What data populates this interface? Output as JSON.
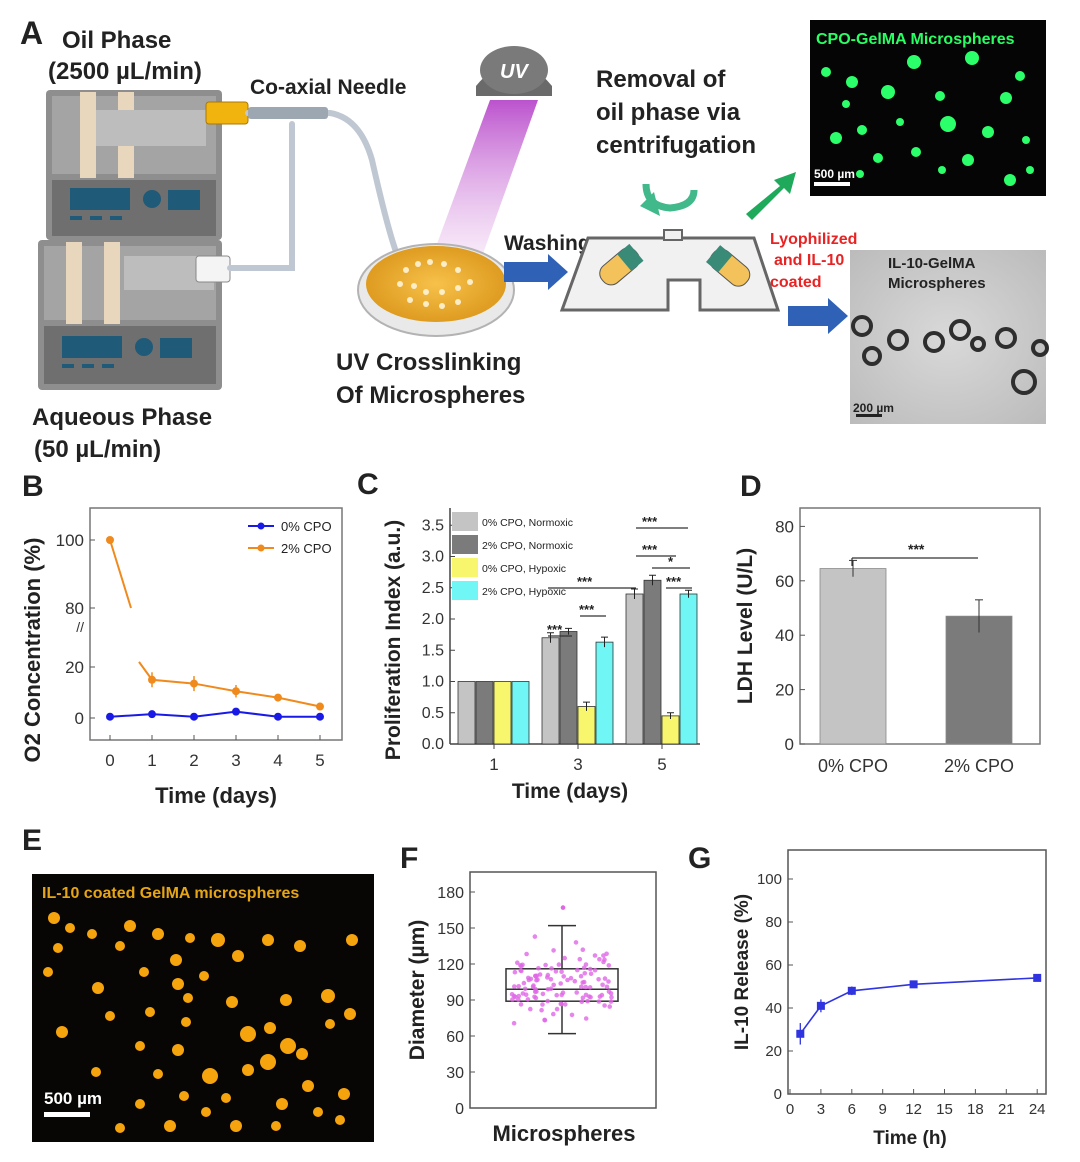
{
  "colors": {
    "orange": "#f08a1d",
    "blue": "#1a1ae6",
    "green_fluor": "#29ff62",
    "gold_fluor": "#f5a40e",
    "arrow_blue": "#2f62b6",
    "arrow_green": "#1fa95a",
    "red_text": "#e82323",
    "bar_lightgray": "#c4c4c4",
    "bar_darkgray": "#7b7b7b",
    "bar_yellow": "#f7f66c",
    "bar_cyan": "#6ff6f5",
    "box_pink": "#e066e6",
    "line_blue": "#2f34e0"
  },
  "panel_a": {
    "letter": "A",
    "oil_phase_title": "Oil Phase",
    "oil_phase_rate": "(2500 µL/min)",
    "needle_label": "Co-axial Needle",
    "uv_label": "UV",
    "aqueous_title": "Aqueous Phase",
    "aqueous_rate": "(50 µL/min)",
    "crosslink_line1": "UV Crosslinking",
    "crosslink_line2": "Of Microspheres",
    "removal_line1": "Removal of",
    "removal_line2": "oil phase via",
    "removal_line3": "centrifugation",
    "washing": "Washing",
    "lyo_line1": "Lyophilized",
    "lyo_line2": "and IL-10",
    "lyo_line3": "coated",
    "cpo_image_title": "CPO-GelMA Microspheres",
    "cpo_scale": "500 µm",
    "il10_image_line1": "IL-10-GelMA",
    "il10_image_line2": "Microspheres",
    "il10_scale": "200 µm"
  },
  "panel_b": {
    "letter": "B",
    "chart_data": {
      "type": "line",
      "xlabel": "Time (days)",
      "ylabel": "O2 Concentration (%)",
      "x": [
        0,
        1,
        2,
        3,
        4,
        5
      ],
      "xticks": [
        "0",
        "1",
        "2",
        "3",
        "4",
        "5"
      ],
      "yticks": [
        "0",
        "20",
        "80",
        "100"
      ],
      "axis_break": "20-80",
      "series": [
        {
          "name": "0% CPO",
          "color": "#1a1ae6",
          "values": [
            0.5,
            1.5,
            0.5,
            2.5,
            0.5,
            0.5
          ],
          "errors": [
            1,
            1,
            1,
            1,
            1,
            1
          ]
        },
        {
          "name": "2% CPO",
          "color": "#f08a1d",
          "values": [
            100,
            15,
            13.5,
            10.5,
            8,
            4.5
          ],
          "errors": [
            1,
            3,
            3,
            2.5,
            1.5,
            1.5
          ]
        }
      ],
      "legend_position": "top-right"
    }
  },
  "panel_c": {
    "letter": "C",
    "chart_data": {
      "type": "bar",
      "xlabel": "Time (days)",
      "ylabel": "Proliferation Index (a.u.)",
      "categories": [
        "1",
        "3",
        "5"
      ],
      "ylim": [
        0,
        3.7
      ],
      "yticks": [
        "0.0",
        "0.5",
        "1.0",
        "1.5",
        "2.0",
        "2.5",
        "3.0",
        "3.5"
      ],
      "series": [
        {
          "name": "0% CPO, Normoxic",
          "color": "#c4c4c4",
          "values": [
            1.0,
            1.7,
            2.4
          ],
          "errors": [
            0,
            0.08,
            0.08
          ]
        },
        {
          "name": "2% CPO, Normoxic",
          "color": "#7b7b7b",
          "values": [
            1.0,
            1.8,
            2.62
          ],
          "errors": [
            0,
            0.05,
            0.08
          ]
        },
        {
          "name": "0% CPO, Hypoxic",
          "color": "#f7f66c",
          "values": [
            1.0,
            0.6,
            0.45
          ],
          "errors": [
            0,
            0.07,
            0.05
          ]
        },
        {
          "name": "2% CPO, Hypoxic",
          "color": "#6ff6f5",
          "values": [
            1.0,
            1.63,
            2.4
          ],
          "errors": [
            0,
            0.08,
            0.06
          ]
        }
      ],
      "significance": [
        "***",
        "***",
        "***",
        "***",
        "***",
        "*",
        "***"
      ],
      "legend_position": "top-left"
    }
  },
  "panel_d": {
    "letter": "D",
    "chart_data": {
      "type": "bar",
      "ylabel": "LDH Level (U/L)",
      "categories": [
        "0% CPO",
        "2% CPO"
      ],
      "values": [
        64.5,
        47
      ],
      "errors": [
        3,
        6
      ],
      "colors": [
        "#c4c4c4",
        "#7b7b7b"
      ],
      "ylim": [
        0,
        85
      ],
      "yticks": [
        "0",
        "20",
        "40",
        "60",
        "80"
      ],
      "significance": "***"
    }
  },
  "panel_e": {
    "letter": "E",
    "image_title": "IL-10 coated GelMA microspheres",
    "scale": "500 µm"
  },
  "panel_f": {
    "letter": "F",
    "chart_data": {
      "type": "box",
      "xlabel": "Microspheres",
      "ylabel": "Diameter (µm)",
      "ylim": [
        0,
        190
      ],
      "yticks": [
        "0",
        "30",
        "60",
        "90",
        "120",
        "150",
        "180"
      ],
      "box": {
        "min": 62,
        "q1": 89,
        "median": 99,
        "q3": 116,
        "max": 152,
        "outlier_max": 167
      }
    }
  },
  "panel_g": {
    "letter": "G",
    "chart_data": {
      "type": "line",
      "xlabel": "Time (h)",
      "ylabel": "IL-10 Release (%)",
      "x": [
        1,
        3,
        6,
        12,
        24
      ],
      "xticks": [
        "0",
        "3",
        "6",
        "9",
        "12",
        "15",
        "18",
        "21",
        "24"
      ],
      "ylim": [
        0,
        105
      ],
      "yticks": [
        "0",
        "20",
        "40",
        "60",
        "80",
        "100"
      ],
      "series": [
        {
          "name": "IL-10",
          "color": "#2f34e0",
          "values": [
            28,
            41,
            48,
            51,
            54
          ],
          "errors": [
            5,
            3,
            2,
            1.5,
            1.5
          ]
        }
      ]
    }
  }
}
